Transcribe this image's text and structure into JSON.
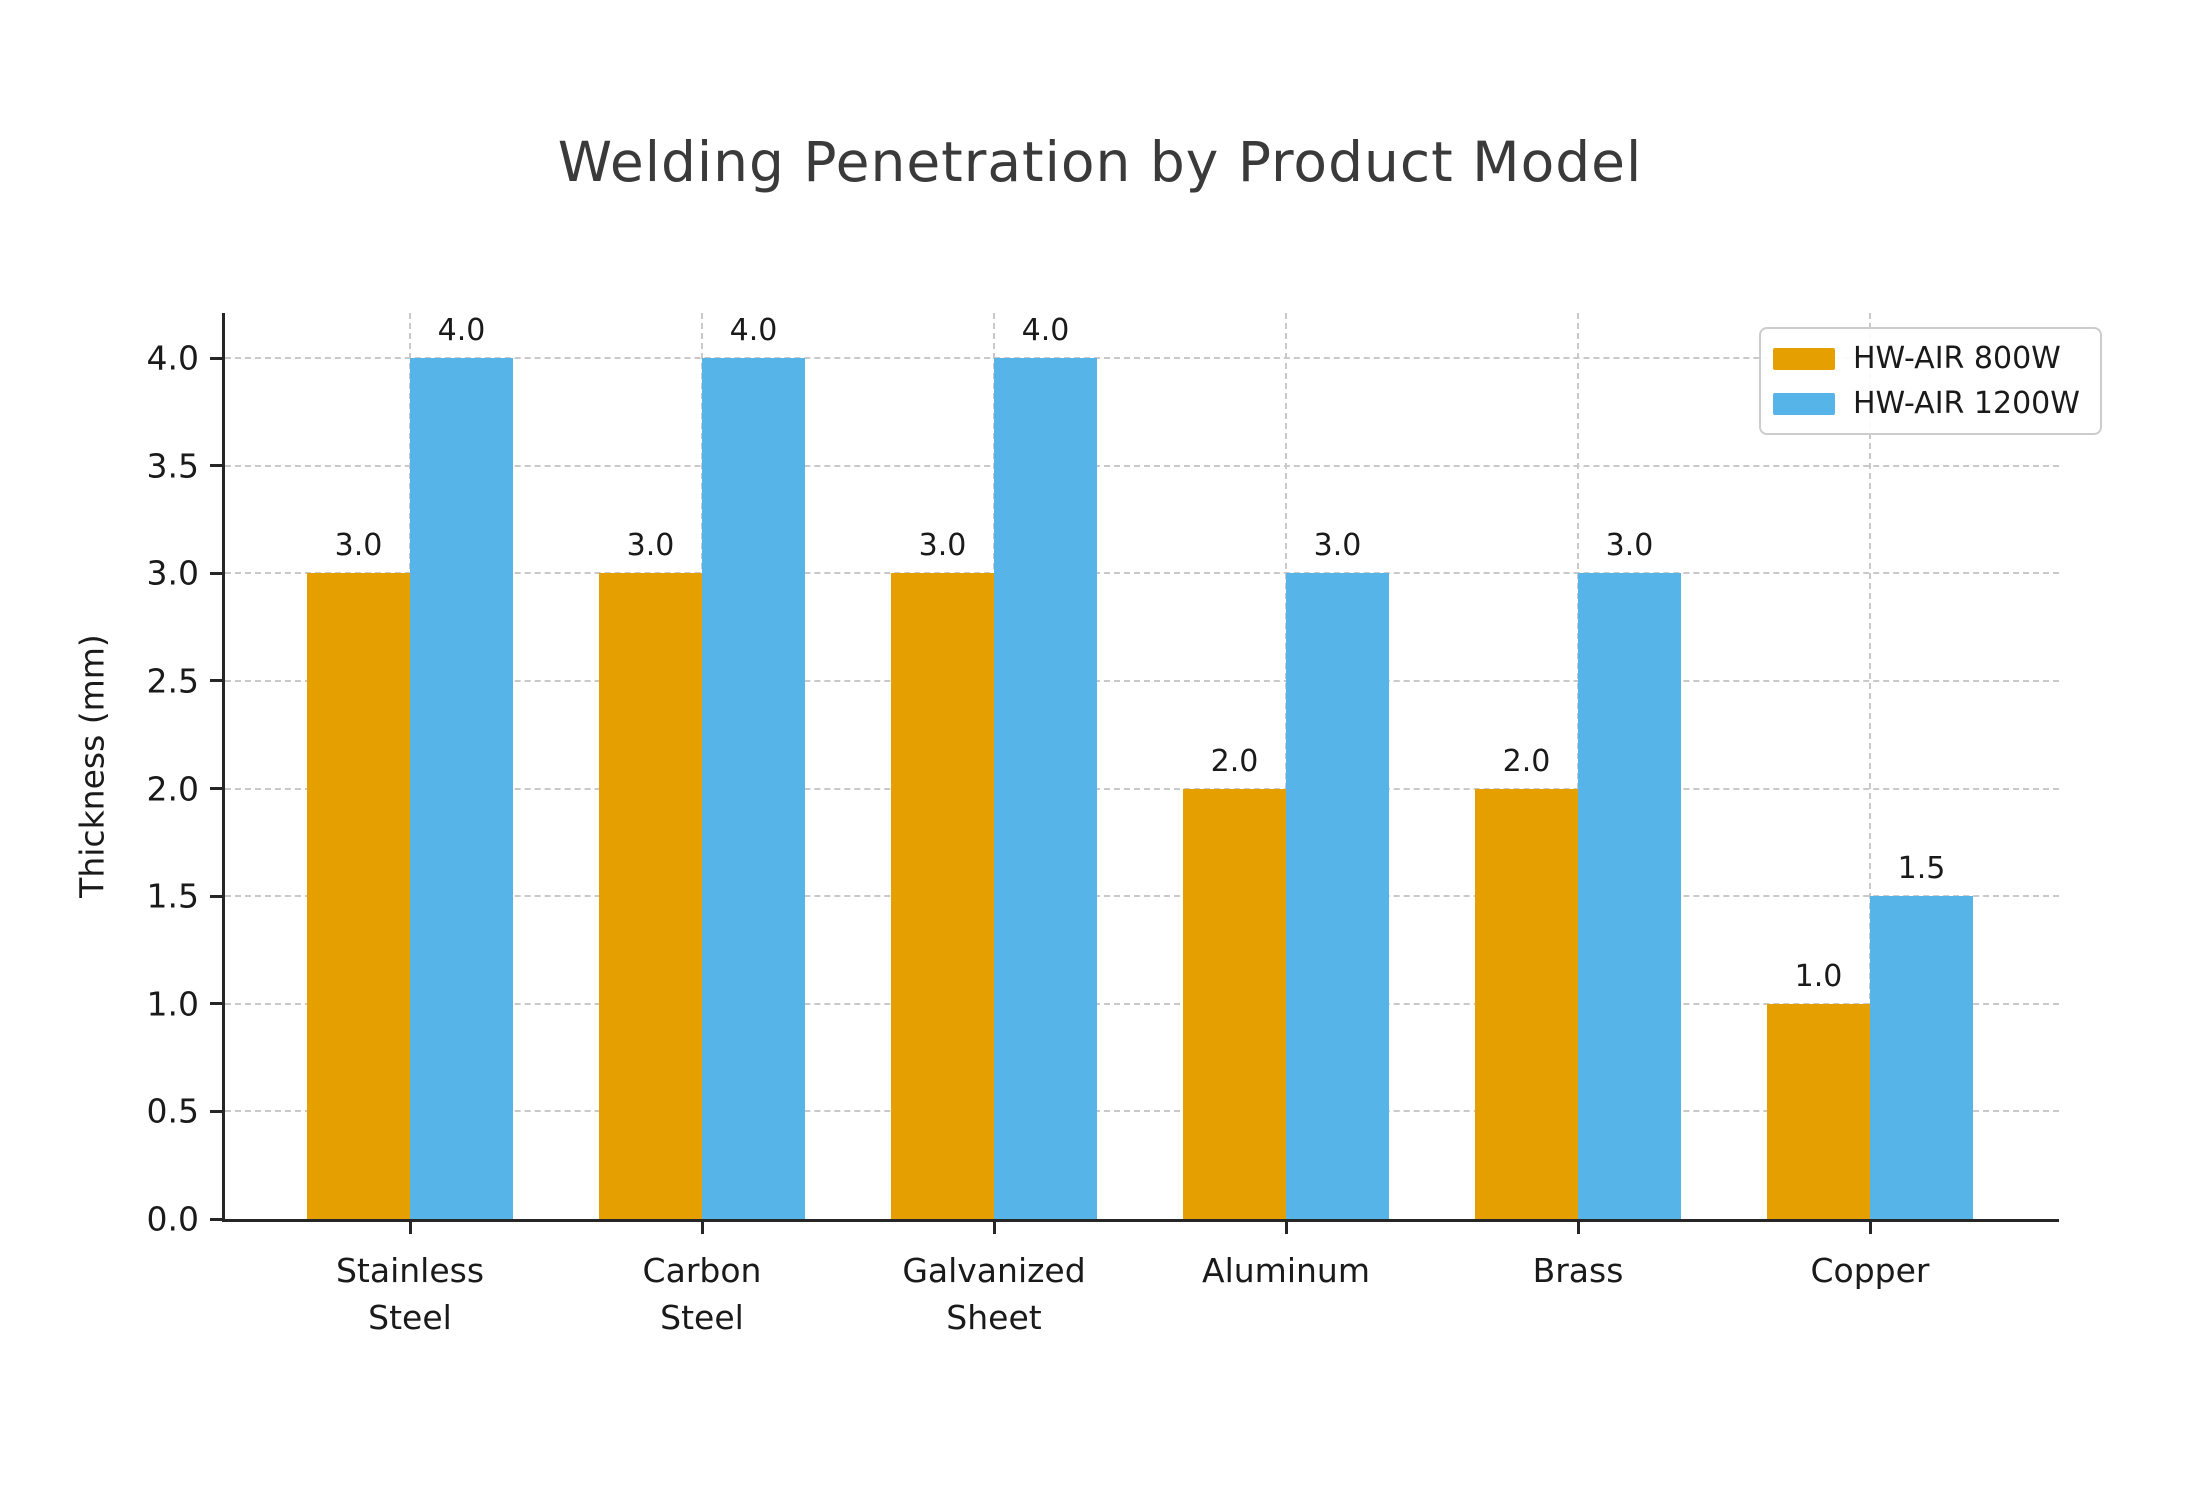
{
  "title": "Welding Penetration by Product Model",
  "colors": {
    "series_800w": "#E69F00",
    "series_1200w": "#56B4E9",
    "grid": "#c9c9c9",
    "spine": "#262626",
    "text": "#1a1a1a",
    "title_text": "#3a3a3a",
    "legend_border": "#cccccc"
  },
  "legend": {
    "entries": [
      {
        "label": "HW-AIR 800W",
        "color": "#E69F00"
      },
      {
        "label": "HW-AIR 1200W",
        "color": "#56B4E9"
      }
    ],
    "position": "upper right"
  },
  "chart_data": {
    "type": "bar",
    "title": "Welding Penetration by Product Model",
    "xlabel": "",
    "ylabel": "Thickness (mm)",
    "categories": [
      [
        "Stainless",
        "Steel"
      ],
      [
        "Carbon",
        "Steel"
      ],
      [
        "Galvanized",
        "Sheet"
      ],
      [
        "Aluminum"
      ],
      [
        "Brass"
      ],
      [
        "Copper"
      ]
    ],
    "series": [
      {
        "name": "HW-AIR 800W",
        "color": "#E69F00",
        "values": [
          3.0,
          3.0,
          3.0,
          2.0,
          2.0,
          1.0
        ]
      },
      {
        "name": "HW-AIR 1200W",
        "color": "#56B4E9",
        "values": [
          4.0,
          4.0,
          4.0,
          3.0,
          3.0,
          1.5
        ]
      }
    ],
    "bar_value_labels": [
      [
        "3.0",
        "3.0",
        "3.0",
        "2.0",
        "2.0",
        "1.0"
      ],
      [
        "4.0",
        "4.0",
        "4.0",
        "3.0",
        "3.0",
        "1.5"
      ]
    ],
    "yticks": [
      0.0,
      0.5,
      1.0,
      1.5,
      2.0,
      2.5,
      3.0,
      3.5,
      4.0
    ],
    "ylim": [
      0,
      4.21
    ],
    "grid": true,
    "grid_style": "dashed",
    "legend_position": "upper right"
  }
}
